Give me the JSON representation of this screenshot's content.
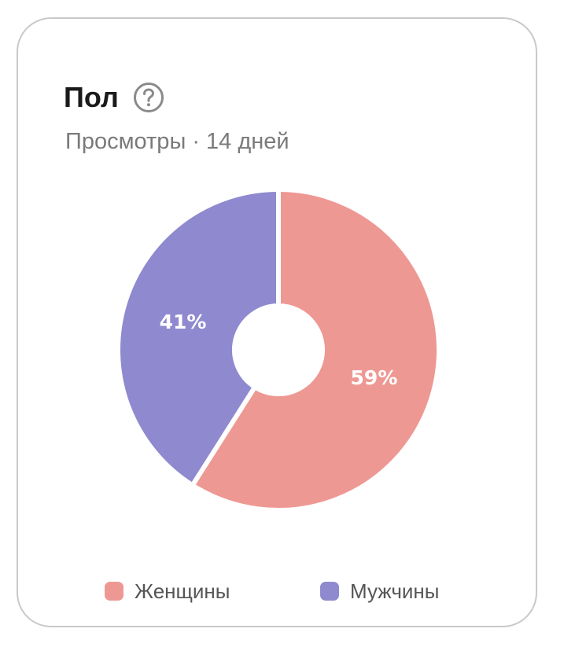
{
  "card": {
    "title": "Пол",
    "help_icon": "question-circle-icon",
    "subtitle": "Просмотры · 14 дней"
  },
  "chart_data": {
    "type": "pie",
    "donut": true,
    "categories": [
      "Женщины",
      "Мужчины"
    ],
    "values": [
      59,
      41
    ],
    "labels": [
      "59%",
      "41%"
    ],
    "colors": [
      "#ee9893",
      "#8f89cf"
    ],
    "legend": "bottom"
  },
  "legend": {
    "items": [
      {
        "label": "Женщины",
        "color": "#ee9893"
      },
      {
        "label": "Мужчины",
        "color": "#8f89cf"
      }
    ]
  }
}
